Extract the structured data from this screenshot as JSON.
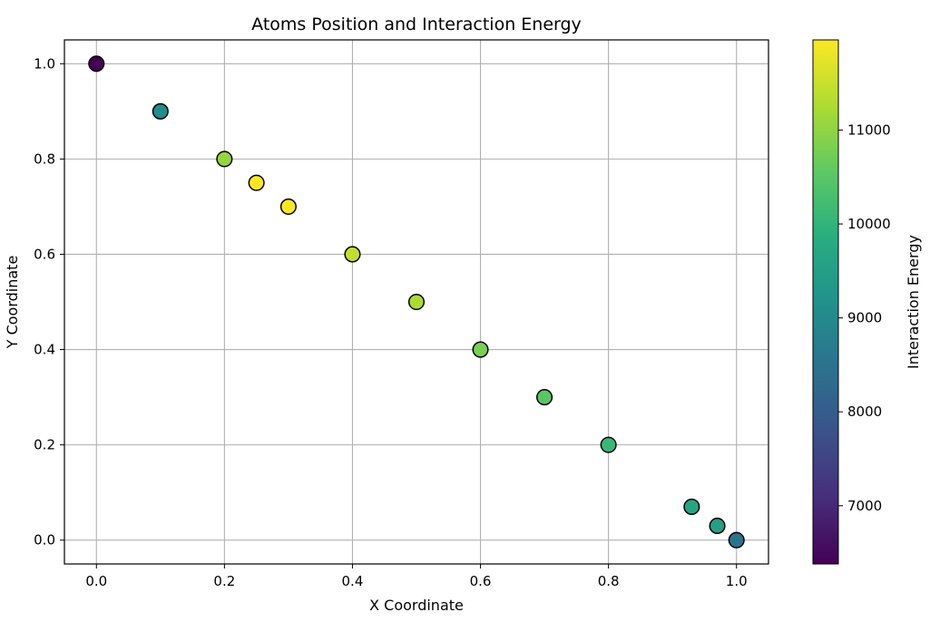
{
  "chart_data": {
    "type": "scatter",
    "title": "Atoms Position and Interaction Energy",
    "xlabel": "X Coordinate",
    "ylabel": "Y Coordinate",
    "colorbar_label": "Interaction Energy",
    "xlim": [
      -0.05,
      1.05
    ],
    "ylim": [
      -0.05,
      1.05
    ],
    "xticks": [
      0.0,
      0.2,
      0.4,
      0.6,
      0.8,
      1.0
    ],
    "xtick_labels": [
      "0.0",
      "0.2",
      "0.4",
      "0.6",
      "0.8",
      "1.0"
    ],
    "yticks": [
      0.0,
      0.2,
      0.4,
      0.6,
      0.8,
      1.0
    ],
    "ytick_labels": [
      "0.0",
      "0.2",
      "0.4",
      "0.6",
      "0.8",
      "1.0"
    ],
    "grid": true,
    "colormap": "viridis",
    "color_range": [
      6380,
      11960
    ],
    "colorbar_ticks": [
      7000,
      8000,
      9000,
      10000,
      11000
    ],
    "colorbar_tick_labels": [
      "7000",
      "8000",
      "9000",
      "10000",
      "11000"
    ],
    "marker_edge_color": "#000000",
    "points": [
      {
        "x": 0.0,
        "y": 1.0,
        "energy": 6380
      },
      {
        "x": 0.1,
        "y": 0.9,
        "energy": 9050
      },
      {
        "x": 0.2,
        "y": 0.8,
        "energy": 11050
      },
      {
        "x": 0.25,
        "y": 0.75,
        "energy": 11960
      },
      {
        "x": 0.3,
        "y": 0.7,
        "energy": 11960
      },
      {
        "x": 0.4,
        "y": 0.6,
        "energy": 11450
      },
      {
        "x": 0.5,
        "y": 0.5,
        "energy": 11250
      },
      {
        "x": 0.6,
        "y": 0.4,
        "energy": 10800
      },
      {
        "x": 0.7,
        "y": 0.3,
        "energy": 10500
      },
      {
        "x": 0.8,
        "y": 0.2,
        "energy": 10100
      },
      {
        "x": 0.93,
        "y": 0.07,
        "energy": 9650
      },
      {
        "x": 0.97,
        "y": 0.03,
        "energy": 9500
      },
      {
        "x": 1.0,
        "y": 0.0,
        "energy": 8500
      }
    ]
  }
}
